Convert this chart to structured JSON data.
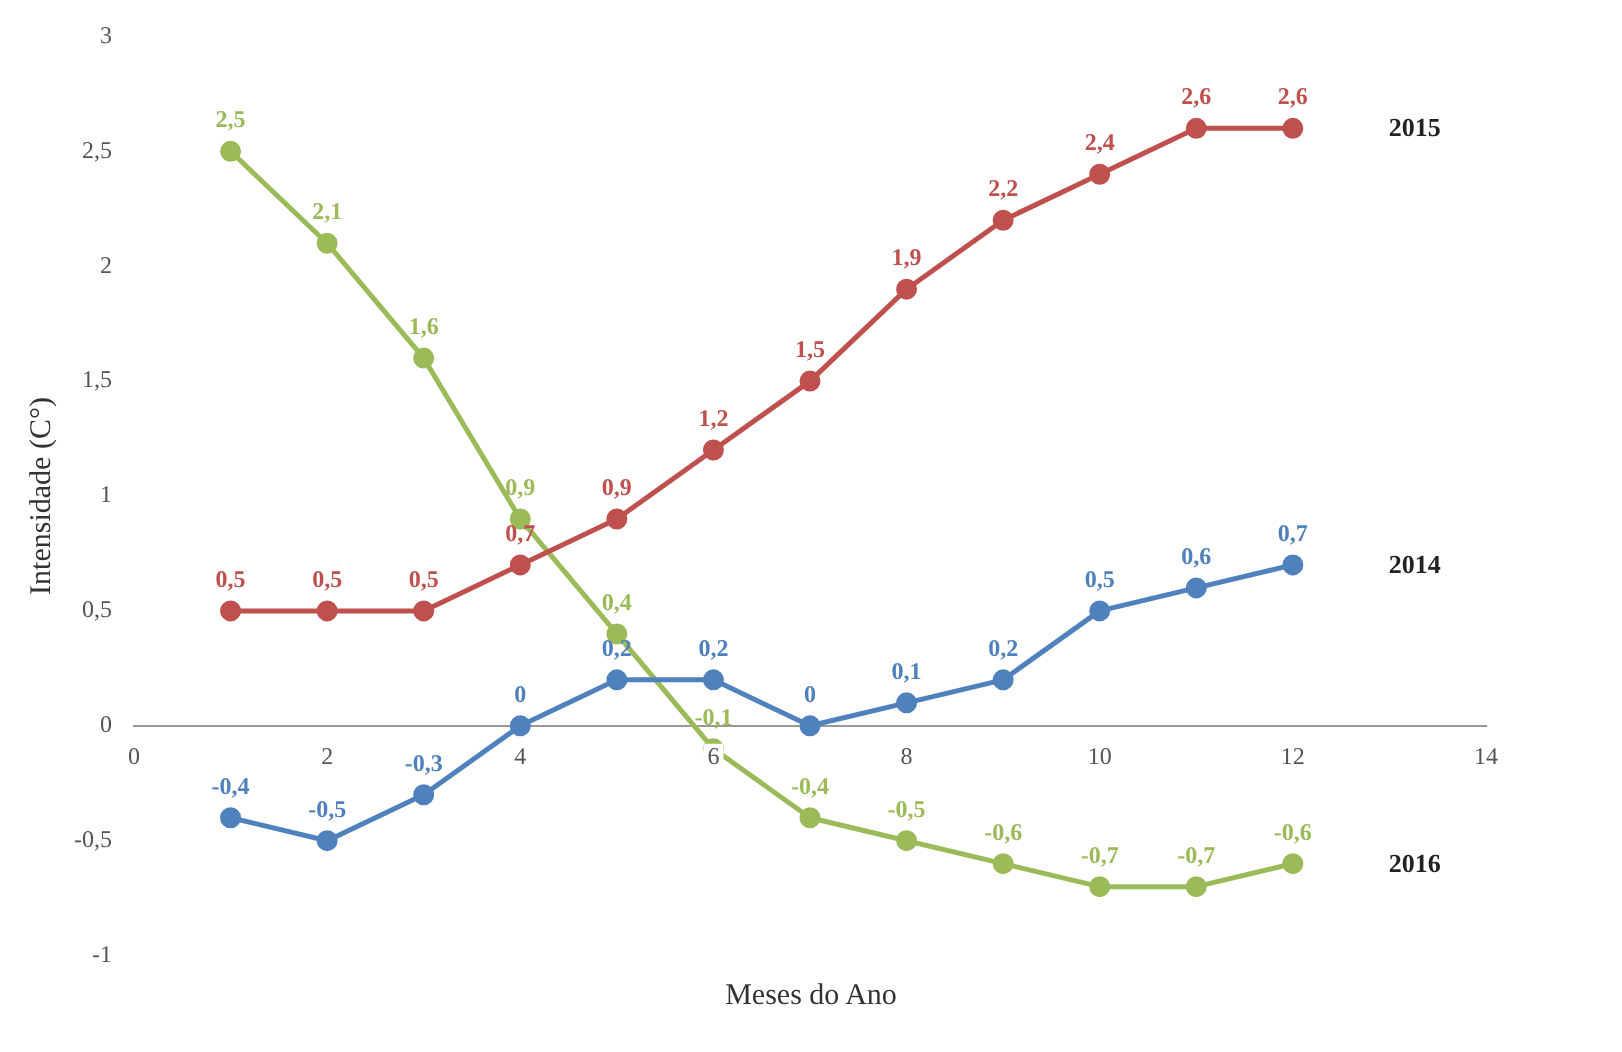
{
  "chart_data": {
    "type": "line",
    "xlabel": "Meses do Ano",
    "ylabel": "Intensidade (C°)",
    "x": [
      1,
      2,
      3,
      4,
      5,
      6,
      7,
      8,
      9,
      10,
      11,
      12
    ],
    "series": [
      {
        "name": "2015",
        "color": "#c0504d",
        "values": [
          0.5,
          0.5,
          0.5,
          0.7,
          0.9,
          1.2,
          1.5,
          1.9,
          2.2,
          2.4,
          2.6,
          2.6
        ],
        "value_labels": [
          "0,5",
          "0,5",
          "0,5",
          "0,7",
          "0,9",
          "1,2",
          "1,5",
          "1,9",
          "2,2",
          "2,4",
          "2,6",
          "2,6"
        ]
      },
      {
        "name": "2014",
        "color": "#4f81bd",
        "values": [
          -0.4,
          -0.5,
          -0.3,
          0,
          0.2,
          0.2,
          0,
          0.1,
          0.2,
          0.5,
          0.6,
          0.7
        ],
        "value_labels": [
          "-0,4",
          "-0,5",
          "-0,3",
          "0",
          "0,2",
          "0,2",
          "0",
          "0,1",
          "0,2",
          "0,5",
          "0,6",
          "0,7"
        ]
      },
      {
        "name": "2016",
        "color": "#9bbb59",
        "values": [
          2.5,
          2.1,
          1.6,
          0.9,
          0.4,
          -0.1,
          -0.4,
          -0.5,
          -0.6,
          -0.7,
          -0.7,
          -0.6
        ],
        "value_labels": [
          "2,5",
          "2,1",
          "1,6",
          "0,9",
          "0,4",
          "-0,1",
          "-0,4",
          "-0,5",
          "-0,6",
          "-0,7",
          "-0,7",
          "-0,6"
        ]
      }
    ],
    "xlim": [
      0,
      14
    ],
    "xticks": [
      0,
      2,
      4,
      6,
      8,
      10,
      12,
      14
    ],
    "ylim": [
      -1,
      3
    ],
    "yticks": [
      {
        "value": -1,
        "label": "-1"
      },
      {
        "value": -0.5,
        "label": "-0,5"
      },
      {
        "value": 0,
        "label": "0"
      },
      {
        "value": 0.5,
        "label": "0,5"
      },
      {
        "value": 1,
        "label": "1"
      },
      {
        "value": 1.5,
        "label": "1,5"
      },
      {
        "value": 2,
        "label": "2"
      },
      {
        "value": 2.5,
        "label": "2,5"
      },
      {
        "value": 3,
        "label": "3"
      }
    ],
    "grid": false,
    "legend": false,
    "marker": "circle",
    "line_style": "solid"
  }
}
